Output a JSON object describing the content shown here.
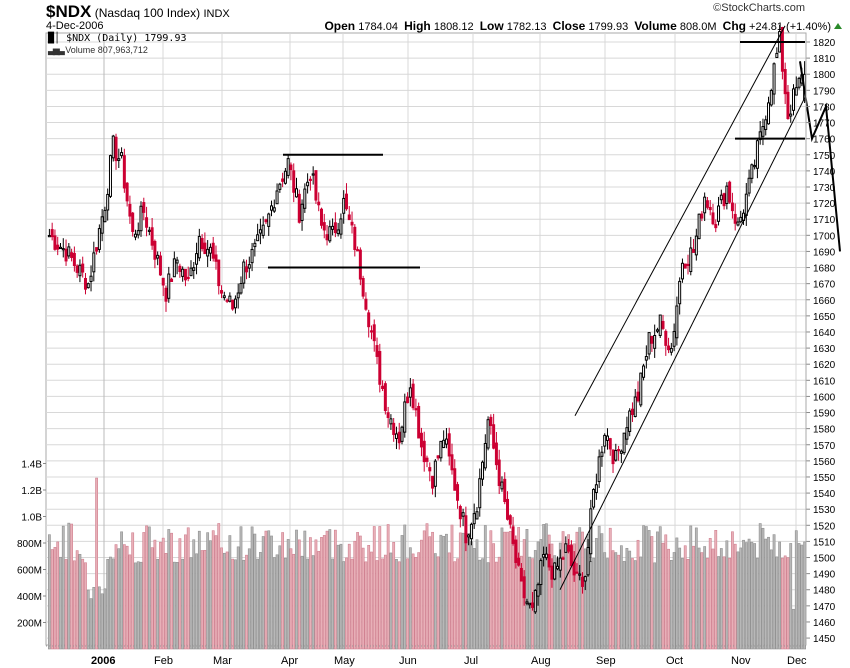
{
  "header": {
    "symbol": "$NDX",
    "name": "(Nasdaq 100 Index)",
    "exchange": "INDX",
    "date": "4-Dec-2006",
    "copyright": "©StockCharts.com",
    "open_label": "Open",
    "open": "1784.04",
    "high_label": "High",
    "high": "1808.12",
    "low_label": "Low",
    "low": "1782.13",
    "close_label": "Close",
    "close": "1799.93",
    "volume_label": "Volume",
    "volume": "808.0M",
    "chg_label": "Chg",
    "chg": "+24.81 (+1.40%)"
  },
  "legend": {
    "price": "$NDX (Daily) 1799.93",
    "volume": "Volume 807,963,712",
    "price_icon": "candlestick-icon",
    "volume_icon": "volume-bars-icon"
  },
  "colors": {
    "down": "#cc0033",
    "up_outline": "#000000",
    "vol_down": "#e8b0b8",
    "vol_down_edge": "#d08090",
    "vol_up": "#b8b8b8",
    "vol_up_edge": "#909090",
    "grid": "#d8d8d8",
    "trendline": "#000000"
  },
  "chart_data": {
    "type": "candlestick",
    "title": "$NDX (Nasdaq 100 Index) INDX",
    "subtitle": "4-Dec-2006",
    "price_axis": {
      "ticks": [
        1820,
        1810,
        1800,
        1790,
        1780,
        1770,
        1760,
        1750,
        1740,
        1730,
        1720,
        1710,
        1700,
        1690,
        1680,
        1670,
        1660,
        1650,
        1640,
        1630,
        1620,
        1610,
        1600,
        1590,
        1580,
        1570,
        1560,
        1550,
        1540,
        1530,
        1520,
        1510,
        1500,
        1490,
        1480,
        1470,
        1460,
        1450
      ],
      "range": [
        1445,
        1825
      ],
      "position": "right"
    },
    "volume_axis": {
      "ticks": [
        "200M",
        "400M",
        "600M",
        "800M",
        "1.0B",
        "1.2B",
        "1.4B"
      ],
      "values": [
        200,
        400,
        600,
        800,
        1000,
        1200,
        1400
      ],
      "unit": "millions",
      "position": "left"
    },
    "x_axis": {
      "labels": [
        "2006",
        "Feb",
        "Mar",
        "Apr",
        "May",
        "Jun",
        "Jul",
        "Aug",
        "Sep",
        "Oct",
        "Nov",
        "Dec"
      ]
    },
    "price_path_anchors": [
      {
        "t": 0,
        "close": 1700
      },
      {
        "t": 6,
        "close": 1690
      },
      {
        "t": 10,
        "close": 1680
      },
      {
        "t": 14,
        "close": 1670
      },
      {
        "t": 17,
        "close": 1695
      },
      {
        "t": 20,
        "close": 1720
      },
      {
        "t": 23,
        "close": 1755
      },
      {
        "t": 26,
        "close": 1745
      },
      {
        "t": 30,
        "close": 1700
      },
      {
        "t": 34,
        "close": 1715
      },
      {
        "t": 38,
        "close": 1690
      },
      {
        "t": 42,
        "close": 1665
      },
      {
        "t": 46,
        "close": 1685
      },
      {
        "t": 50,
        "close": 1670
      },
      {
        "t": 54,
        "close": 1700
      },
      {
        "t": 58,
        "close": 1690
      },
      {
        "t": 62,
        "close": 1665
      },
      {
        "t": 66,
        "close": 1655
      },
      {
        "t": 70,
        "close": 1680
      },
      {
        "t": 74,
        "close": 1690
      },
      {
        "t": 78,
        "close": 1705
      },
      {
        "t": 82,
        "close": 1730
      },
      {
        "t": 86,
        "close": 1745
      },
      {
        "t": 90,
        "close": 1715
      },
      {
        "t": 94,
        "close": 1740
      },
      {
        "t": 98,
        "close": 1705
      },
      {
        "t": 102,
        "close": 1700
      },
      {
        "t": 106,
        "close": 1720
      },
      {
        "t": 110,
        "close": 1695
      },
      {
        "t": 114,
        "close": 1660
      },
      {
        "t": 118,
        "close": 1620
      },
      {
        "t": 122,
        "close": 1590
      },
      {
        "t": 126,
        "close": 1575
      },
      {
        "t": 130,
        "close": 1610
      },
      {
        "t": 134,
        "close": 1570
      },
      {
        "t": 138,
        "close": 1550
      },
      {
        "t": 142,
        "close": 1575
      },
      {
        "t": 146,
        "close": 1545
      },
      {
        "t": 150,
        "close": 1515
      },
      {
        "t": 154,
        "close": 1535
      },
      {
        "t": 158,
        "close": 1585
      },
      {
        "t": 162,
        "close": 1550
      },
      {
        "t": 166,
        "close": 1515
      },
      {
        "t": 170,
        "close": 1480
      },
      {
        "t": 174,
        "close": 1465
      },
      {
        "t": 178,
        "close": 1500
      },
      {
        "t": 182,
        "close": 1490
      },
      {
        "t": 186,
        "close": 1505
      },
      {
        "t": 190,
        "close": 1485
      },
      {
        "t": 193,
        "close": 1490
      },
      {
        "t": 196,
        "close": 1540
      },
      {
        "t": 200,
        "close": 1580
      },
      {
        "t": 204,
        "close": 1560
      },
      {
        "t": 208,
        "close": 1585
      },
      {
        "t": 212,
        "close": 1600
      },
      {
        "t": 216,
        "close": 1635
      },
      {
        "t": 220,
        "close": 1645
      },
      {
        "t": 224,
        "close": 1630
      },
      {
        "t": 228,
        "close": 1685
      },
      {
        "t": 232,
        "close": 1690
      },
      {
        "t": 236,
        "close": 1725
      },
      {
        "t": 240,
        "close": 1710
      },
      {
        "t": 244,
        "close": 1730
      },
      {
        "t": 248,
        "close": 1705
      },
      {
        "t": 252,
        "close": 1730
      },
      {
        "t": 256,
        "close": 1760
      },
      {
        "t": 260,
        "close": 1795
      },
      {
        "t": 263,
        "close": 1820
      },
      {
        "t": 266,
        "close": 1775
      },
      {
        "t": 269,
        "close": 1790
      },
      {
        "t": 272,
        "close": 1800
      }
    ],
    "annotations": [
      {
        "type": "hline",
        "price": 1750,
        "label": "resistance (Apr-May top)"
      },
      {
        "type": "hline",
        "price": 1680,
        "label": "support (Apr-May)"
      },
      {
        "type": "hline",
        "price": 1820,
        "label": "Nov high"
      },
      {
        "type": "hline",
        "price": 1760,
        "label": "Nov support"
      },
      {
        "type": "channel",
        "label": "rising channel Aug-Dec"
      },
      {
        "type": "projection",
        "label": "projected path down to ~1690"
      }
    ],
    "last": {
      "open": 1784.04,
      "high": 1808.12,
      "low": 1782.13,
      "close": 1799.93,
      "volume": 807963712
    }
  }
}
